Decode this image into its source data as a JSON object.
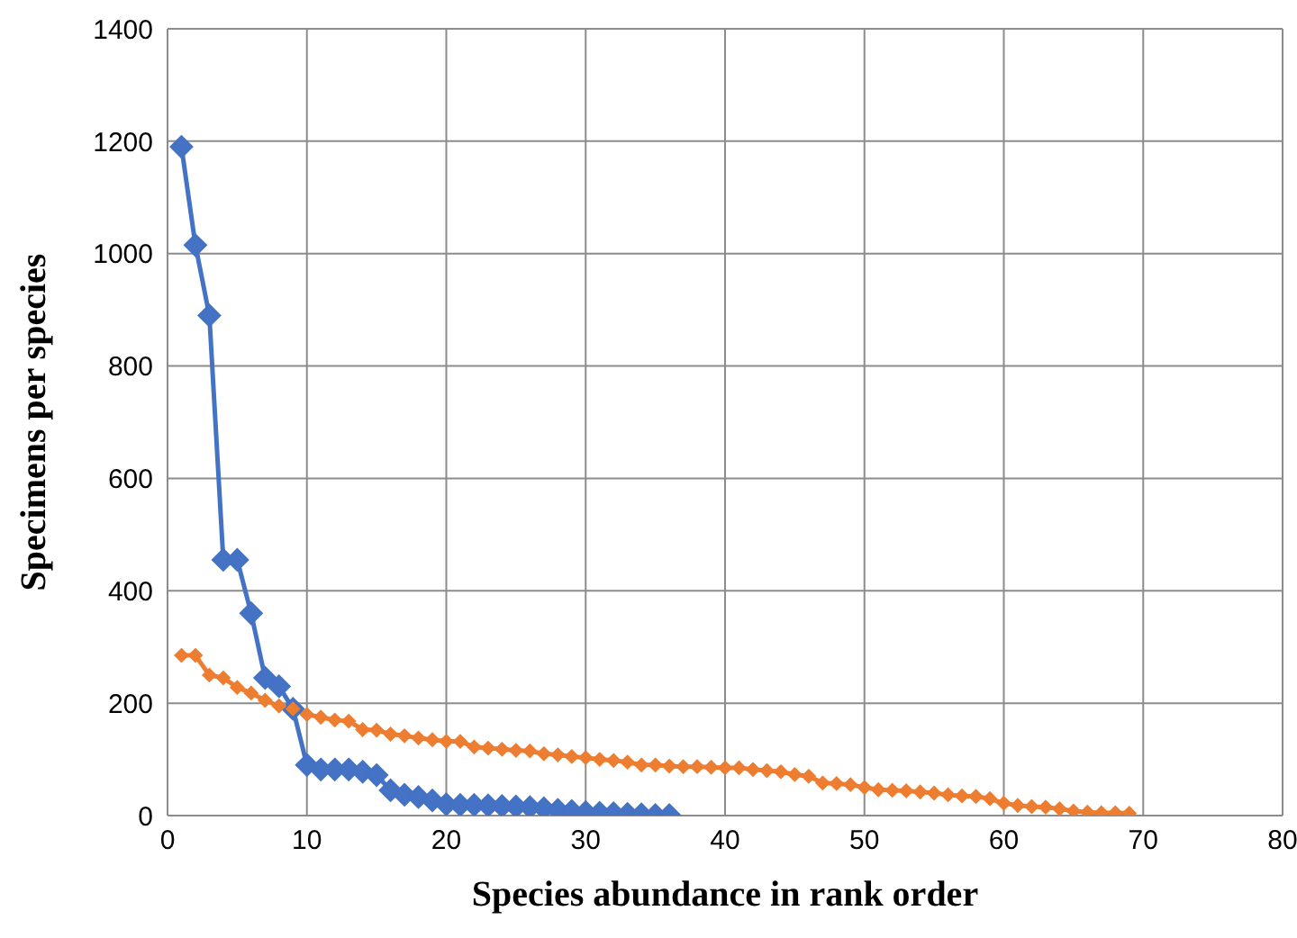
{
  "chart_data": {
    "type": "line",
    "xlabel": "Species abundance in rank order",
    "ylabel": "Specimens per species",
    "xlim": [
      0,
      80
    ],
    "xticks": [
      0,
      10,
      20,
      30,
      40,
      50,
      60,
      70,
      80
    ],
    "ylim": [
      0,
      1400
    ],
    "yticks": [
      0,
      200,
      400,
      600,
      800,
      1000,
      1200,
      1400
    ],
    "grid": true,
    "legend": false,
    "marker": "diamond",
    "line_style": "solid",
    "series": [
      {
        "color": "#4472c4",
        "x": [
          1,
          2,
          3,
          4,
          5,
          6,
          7,
          8,
          9,
          10,
          11,
          12,
          13,
          14,
          15,
          16,
          17,
          18,
          19,
          20,
          21,
          22,
          23,
          24,
          25,
          26,
          27,
          28,
          29,
          30,
          31,
          32,
          33,
          34,
          35,
          36
        ],
        "values": [
          1190,
          1015,
          890,
          455,
          455,
          360,
          245,
          230,
          190,
          90,
          82,
          82,
          82,
          78,
          72,
          45,
          37,
          33,
          27,
          20,
          19,
          19,
          18,
          17,
          16,
          15,
          13,
          10,
          8,
          6,
          5,
          4,
          3,
          2,
          1,
          1
        ]
      },
      {
        "color": "#ed7d31",
        "x": [
          1,
          2,
          3,
          4,
          5,
          6,
          7,
          8,
          9,
          10,
          11,
          12,
          13,
          14,
          15,
          16,
          17,
          18,
          19,
          20,
          21,
          22,
          23,
          24,
          25,
          26,
          27,
          28,
          29,
          30,
          31,
          32,
          33,
          34,
          35,
          36,
          37,
          38,
          39,
          40,
          41,
          42,
          43,
          44,
          45,
          46,
          47,
          48,
          49,
          50,
          51,
          52,
          53,
          54,
          55,
          56,
          57,
          58,
          59,
          60,
          61,
          62,
          63,
          64,
          65,
          66,
          67,
          68,
          69
        ],
        "values": [
          285,
          285,
          250,
          245,
          228,
          218,
          205,
          195,
          190,
          180,
          175,
          170,
          168,
          153,
          152,
          145,
          142,
          138,
          135,
          132,
          132,
          122,
          120,
          118,
          116,
          115,
          110,
          108,
          105,
          103,
          100,
          98,
          95,
          90,
          90,
          88,
          87,
          87,
          86,
          85,
          85,
          82,
          80,
          78,
          73,
          70,
          58,
          57,
          55,
          50,
          46,
          45,
          44,
          42,
          40,
          37,
          35,
          34,
          30,
          22,
          18,
          16,
          15,
          12,
          8,
          6,
          5,
          5,
          4
        ]
      }
    ]
  }
}
